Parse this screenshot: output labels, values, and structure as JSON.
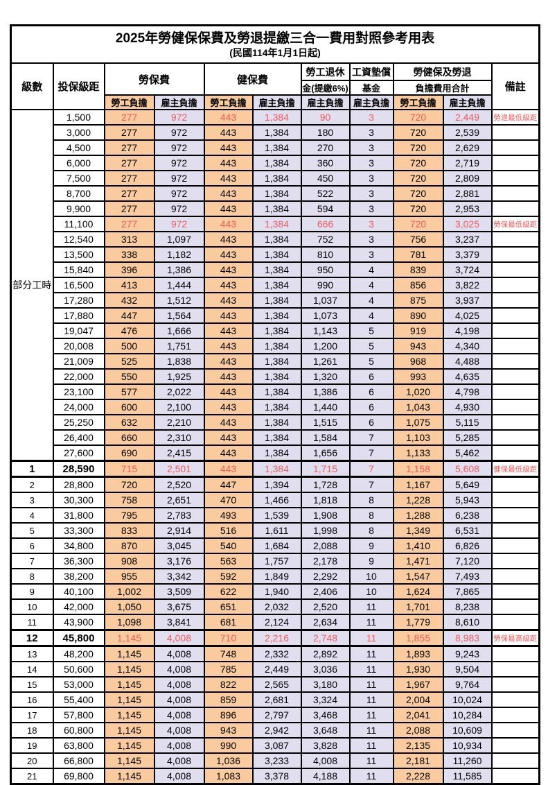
{
  "title": "2025年勞健保保費及勞退提繳三合一費用對照參考用表",
  "subtitle": "(民國114年1月1日起)",
  "colors": {
    "employee_bg": "#F9CB9E",
    "employer_bg": "#E1DEF0",
    "highlight_text": "#EE5B5B"
  },
  "columns": {
    "level": "級數",
    "bracket": "投保級距",
    "labor_insurance": "勞保費",
    "health_insurance": "健保費",
    "pension_line1": "勞工退休",
    "pension_line2": "金(提繳6%)",
    "wage_fund_line1": "工資墊償",
    "wage_fund_line2": "基金",
    "total_line1": "勞健保及勞退",
    "total_line2": "負擔費用合計",
    "remark": "備註",
    "employee": "勞工負擔",
    "employer": "雇主負擔"
  },
  "part_time_label": "部分工時",
  "part_time_rowspan": 23,
  "rows": [
    {
      "level": "",
      "bracket": "1,500",
      "li_emp": "277",
      "li_er": "972",
      "hi_emp": "443",
      "hi_er": "1,384",
      "pension": "90",
      "fund": "3",
      "tot_emp": "720",
      "tot_er": "2,449",
      "remark": "勞退最低級距",
      "highlight": true,
      "major": false
    },
    {
      "level": "",
      "bracket": "3,000",
      "li_emp": "277",
      "li_er": "972",
      "hi_emp": "443",
      "hi_er": "1,384",
      "pension": "180",
      "fund": "3",
      "tot_emp": "720",
      "tot_er": "2,539",
      "remark": "",
      "highlight": false,
      "major": false
    },
    {
      "level": "",
      "bracket": "4,500",
      "li_emp": "277",
      "li_er": "972",
      "hi_emp": "443",
      "hi_er": "1,384",
      "pension": "270",
      "fund": "3",
      "tot_emp": "720",
      "tot_er": "2,629",
      "remark": "",
      "highlight": false,
      "major": false
    },
    {
      "level": "",
      "bracket": "6,000",
      "li_emp": "277",
      "li_er": "972",
      "hi_emp": "443",
      "hi_er": "1,384",
      "pension": "360",
      "fund": "3",
      "tot_emp": "720",
      "tot_er": "2,719",
      "remark": "",
      "highlight": false,
      "major": false
    },
    {
      "level": "",
      "bracket": "7,500",
      "li_emp": "277",
      "li_er": "972",
      "hi_emp": "443",
      "hi_er": "1,384",
      "pension": "450",
      "fund": "3",
      "tot_emp": "720",
      "tot_er": "2,809",
      "remark": "",
      "highlight": false,
      "major": false
    },
    {
      "level": "",
      "bracket": "8,700",
      "li_emp": "277",
      "li_er": "972",
      "hi_emp": "443",
      "hi_er": "1,384",
      "pension": "522",
      "fund": "3",
      "tot_emp": "720",
      "tot_er": "2,881",
      "remark": "",
      "highlight": false,
      "major": false
    },
    {
      "level": "",
      "bracket": "9,900",
      "li_emp": "277",
      "li_er": "972",
      "hi_emp": "443",
      "hi_er": "1,384",
      "pension": "594",
      "fund": "3",
      "tot_emp": "720",
      "tot_er": "2,953",
      "remark": "",
      "highlight": false,
      "major": false
    },
    {
      "level": "",
      "bracket": "11,100",
      "li_emp": "277",
      "li_er": "972",
      "hi_emp": "443",
      "hi_er": "1,384",
      "pension": "666",
      "fund": "3",
      "tot_emp": "720",
      "tot_er": "3,025",
      "remark": "勞保最低級距",
      "highlight": true,
      "major": false
    },
    {
      "level": "",
      "bracket": "12,540",
      "li_emp": "313",
      "li_er": "1,097",
      "hi_emp": "443",
      "hi_er": "1,384",
      "pension": "752",
      "fund": "3",
      "tot_emp": "756",
      "tot_er": "3,237",
      "remark": "",
      "highlight": false,
      "major": false
    },
    {
      "level": "",
      "bracket": "13,500",
      "li_emp": "338",
      "li_er": "1,182",
      "hi_emp": "443",
      "hi_er": "1,384",
      "pension": "810",
      "fund": "3",
      "tot_emp": "781",
      "tot_er": "3,379",
      "remark": "",
      "highlight": false,
      "major": false
    },
    {
      "level": "",
      "bracket": "15,840",
      "li_emp": "396",
      "li_er": "1,386",
      "hi_emp": "443",
      "hi_er": "1,384",
      "pension": "950",
      "fund": "4",
      "tot_emp": "839",
      "tot_er": "3,724",
      "remark": "",
      "highlight": false,
      "major": false
    },
    {
      "level": "",
      "bracket": "16,500",
      "li_emp": "413",
      "li_er": "1,444",
      "hi_emp": "443",
      "hi_er": "1,384",
      "pension": "990",
      "fund": "4",
      "tot_emp": "856",
      "tot_er": "3,822",
      "remark": "",
      "highlight": false,
      "major": false
    },
    {
      "level": "",
      "bracket": "17,280",
      "li_emp": "432",
      "li_er": "1,512",
      "hi_emp": "443",
      "hi_er": "1,384",
      "pension": "1,037",
      "fund": "4",
      "tot_emp": "875",
      "tot_er": "3,937",
      "remark": "",
      "highlight": false,
      "major": false
    },
    {
      "level": "",
      "bracket": "17,880",
      "li_emp": "447",
      "li_er": "1,564",
      "hi_emp": "443",
      "hi_er": "1,384",
      "pension": "1,073",
      "fund": "4",
      "tot_emp": "890",
      "tot_er": "4,025",
      "remark": "",
      "highlight": false,
      "major": false
    },
    {
      "level": "",
      "bracket": "19,047",
      "li_emp": "476",
      "li_er": "1,666",
      "hi_emp": "443",
      "hi_er": "1,384",
      "pension": "1,143",
      "fund": "5",
      "tot_emp": "919",
      "tot_er": "4,198",
      "remark": "",
      "highlight": false,
      "major": false
    },
    {
      "level": "",
      "bracket": "20,008",
      "li_emp": "500",
      "li_er": "1,751",
      "hi_emp": "443",
      "hi_er": "1,384",
      "pension": "1,200",
      "fund": "5",
      "tot_emp": "943",
      "tot_er": "4,340",
      "remark": "",
      "highlight": false,
      "major": false
    },
    {
      "level": "",
      "bracket": "21,009",
      "li_emp": "525",
      "li_er": "1,838",
      "hi_emp": "443",
      "hi_er": "1,384",
      "pension": "1,261",
      "fund": "5",
      "tot_emp": "968",
      "tot_er": "4,488",
      "remark": "",
      "highlight": false,
      "major": false
    },
    {
      "level": "",
      "bracket": "22,000",
      "li_emp": "550",
      "li_er": "1,925",
      "hi_emp": "443",
      "hi_er": "1,384",
      "pension": "1,320",
      "fund": "6",
      "tot_emp": "993",
      "tot_er": "4,635",
      "remark": "",
      "highlight": false,
      "major": false
    },
    {
      "level": "",
      "bracket": "23,100",
      "li_emp": "577",
      "li_er": "2,022",
      "hi_emp": "443",
      "hi_er": "1,384",
      "pension": "1,386",
      "fund": "6",
      "tot_emp": "1,020",
      "tot_er": "4,798",
      "remark": "",
      "highlight": false,
      "major": false
    },
    {
      "level": "",
      "bracket": "24,000",
      "li_emp": "600",
      "li_er": "2,100",
      "hi_emp": "443",
      "hi_er": "1,384",
      "pension": "1,440",
      "fund": "6",
      "tot_emp": "1,043",
      "tot_er": "4,930",
      "remark": "",
      "highlight": false,
      "major": false
    },
    {
      "level": "",
      "bracket": "25,250",
      "li_emp": "632",
      "li_er": "2,210",
      "hi_emp": "443",
      "hi_er": "1,384",
      "pension": "1,515",
      "fund": "6",
      "tot_emp": "1,075",
      "tot_er": "5,115",
      "remark": "",
      "highlight": false,
      "major": false
    },
    {
      "level": "",
      "bracket": "26,400",
      "li_emp": "660",
      "li_er": "2,310",
      "hi_emp": "443",
      "hi_er": "1,384",
      "pension": "1,584",
      "fund": "7",
      "tot_emp": "1,103",
      "tot_er": "5,285",
      "remark": "",
      "highlight": false,
      "major": false
    },
    {
      "level": "",
      "bracket": "27,600",
      "li_emp": "690",
      "li_er": "2,415",
      "hi_emp": "443",
      "hi_er": "1,384",
      "pension": "1,656",
      "fund": "7",
      "tot_emp": "1,133",
      "tot_er": "5,462",
      "remark": "",
      "highlight": false,
      "major": false
    },
    {
      "level": "1",
      "bracket": "28,590",
      "li_emp": "715",
      "li_er": "2,501",
      "hi_emp": "443",
      "hi_er": "1,384",
      "pension": "1,715",
      "fund": "7",
      "tot_emp": "1,158",
      "tot_er": "5,608",
      "remark": "健保最低級距",
      "highlight": true,
      "major": true
    },
    {
      "level": "2",
      "bracket": "28,800",
      "li_emp": "720",
      "li_er": "2,520",
      "hi_emp": "447",
      "hi_er": "1,394",
      "pension": "1,728",
      "fund": "7",
      "tot_emp": "1,167",
      "tot_er": "5,649",
      "remark": "",
      "highlight": false,
      "major": false
    },
    {
      "level": "3",
      "bracket": "30,300",
      "li_emp": "758",
      "li_er": "2,651",
      "hi_emp": "470",
      "hi_er": "1,466",
      "pension": "1,818",
      "fund": "8",
      "tot_emp": "1,228",
      "tot_er": "5,943",
      "remark": "",
      "highlight": false,
      "major": false
    },
    {
      "level": "4",
      "bracket": "31,800",
      "li_emp": "795",
      "li_er": "2,783",
      "hi_emp": "493",
      "hi_er": "1,539",
      "pension": "1,908",
      "fund": "8",
      "tot_emp": "1,288",
      "tot_er": "6,238",
      "remark": "",
      "highlight": false,
      "major": false
    },
    {
      "level": "5",
      "bracket": "33,300",
      "li_emp": "833",
      "li_er": "2,914",
      "hi_emp": "516",
      "hi_er": "1,611",
      "pension": "1,998",
      "fund": "8",
      "tot_emp": "1,349",
      "tot_er": "6,531",
      "remark": "",
      "highlight": false,
      "major": false
    },
    {
      "level": "6",
      "bracket": "34,800",
      "li_emp": "870",
      "li_er": "3,045",
      "hi_emp": "540",
      "hi_er": "1,684",
      "pension": "2,088",
      "fund": "9",
      "tot_emp": "1,410",
      "tot_er": "6,826",
      "remark": "",
      "highlight": false,
      "major": false
    },
    {
      "level": "7",
      "bracket": "36,300",
      "li_emp": "908",
      "li_er": "3,176",
      "hi_emp": "563",
      "hi_er": "1,757",
      "pension": "2,178",
      "fund": "9",
      "tot_emp": "1,471",
      "tot_er": "7,120",
      "remark": "",
      "highlight": false,
      "major": false
    },
    {
      "level": "8",
      "bracket": "38,200",
      "li_emp": "955",
      "li_er": "3,342",
      "hi_emp": "592",
      "hi_er": "1,849",
      "pension": "2,292",
      "fund": "10",
      "tot_emp": "1,547",
      "tot_er": "7,493",
      "remark": "",
      "highlight": false,
      "major": false
    },
    {
      "level": "9",
      "bracket": "40,100",
      "li_emp": "1,002",
      "li_er": "3,509",
      "hi_emp": "622",
      "hi_er": "1,940",
      "pension": "2,406",
      "fund": "10",
      "tot_emp": "1,624",
      "tot_er": "7,865",
      "remark": "",
      "highlight": false,
      "major": false
    },
    {
      "level": "10",
      "bracket": "42,000",
      "li_emp": "1,050",
      "li_er": "3,675",
      "hi_emp": "651",
      "hi_er": "2,032",
      "pension": "2,520",
      "fund": "11",
      "tot_emp": "1,701",
      "tot_er": "8,238",
      "remark": "",
      "highlight": false,
      "major": false
    },
    {
      "level": "11",
      "bracket": "43,900",
      "li_emp": "1,098",
      "li_er": "3,841",
      "hi_emp": "681",
      "hi_er": "2,124",
      "pension": "2,634",
      "fund": "11",
      "tot_emp": "1,779",
      "tot_er": "8,610",
      "remark": "",
      "highlight": false,
      "major": false
    },
    {
      "level": "12",
      "bracket": "45,800",
      "li_emp": "1,145",
      "li_er": "4,008",
      "hi_emp": "710",
      "hi_er": "2,216",
      "pension": "2,748",
      "fund": "11",
      "tot_emp": "1,855",
      "tot_er": "8,983",
      "remark": "勞保最高級距",
      "highlight": true,
      "major": true
    },
    {
      "level": "13",
      "bracket": "48,200",
      "li_emp": "1,145",
      "li_er": "4,008",
      "hi_emp": "748",
      "hi_er": "2,332",
      "pension": "2,892",
      "fund": "11",
      "tot_emp": "1,893",
      "tot_er": "9,243",
      "remark": "",
      "highlight": false,
      "major": false
    },
    {
      "level": "14",
      "bracket": "50,600",
      "li_emp": "1,145",
      "li_er": "4,008",
      "hi_emp": "785",
      "hi_er": "2,449",
      "pension": "3,036",
      "fund": "11",
      "tot_emp": "1,930",
      "tot_er": "9,504",
      "remark": "",
      "highlight": false,
      "major": false
    },
    {
      "level": "15",
      "bracket": "53,000",
      "li_emp": "1,145",
      "li_er": "4,008",
      "hi_emp": "822",
      "hi_er": "2,565",
      "pension": "3,180",
      "fund": "11",
      "tot_emp": "1,967",
      "tot_er": "9,764",
      "remark": "",
      "highlight": false,
      "major": false
    },
    {
      "level": "16",
      "bracket": "55,400",
      "li_emp": "1,145",
      "li_er": "4,008",
      "hi_emp": "859",
      "hi_er": "2,681",
      "pension": "3,324",
      "fund": "11",
      "tot_emp": "2,004",
      "tot_er": "10,024",
      "remark": "",
      "highlight": false,
      "major": false
    },
    {
      "level": "17",
      "bracket": "57,800",
      "li_emp": "1,145",
      "li_er": "4,008",
      "hi_emp": "896",
      "hi_er": "2,797",
      "pension": "3,468",
      "fund": "11",
      "tot_emp": "2,041",
      "tot_er": "10,284",
      "remark": "",
      "highlight": false,
      "major": false
    },
    {
      "level": "18",
      "bracket": "60,800",
      "li_emp": "1,145",
      "li_er": "4,008",
      "hi_emp": "943",
      "hi_er": "2,942",
      "pension": "3,648",
      "fund": "11",
      "tot_emp": "2,088",
      "tot_er": "10,609",
      "remark": "",
      "highlight": false,
      "major": false
    },
    {
      "level": "19",
      "bracket": "63,800",
      "li_emp": "1,145",
      "li_er": "4,008",
      "hi_emp": "990",
      "hi_er": "3,087",
      "pension": "3,828",
      "fund": "11",
      "tot_emp": "2,135",
      "tot_er": "10,934",
      "remark": "",
      "highlight": false,
      "major": false
    },
    {
      "level": "20",
      "bracket": "66,800",
      "li_emp": "1,145",
      "li_er": "4,008",
      "hi_emp": "1,036",
      "hi_er": "3,233",
      "pension": "4,008",
      "fund": "11",
      "tot_emp": "2,181",
      "tot_er": "11,260",
      "remark": "",
      "highlight": false,
      "major": false
    },
    {
      "level": "21",
      "bracket": "69,800",
      "li_emp": "1,145",
      "li_er": "4,008",
      "hi_emp": "1,083",
      "hi_er": "3,378",
      "pension": "4,188",
      "fund": "11",
      "tot_emp": "2,228",
      "tot_er": "11,585",
      "remark": "",
      "highlight": false,
      "major": false
    }
  ]
}
